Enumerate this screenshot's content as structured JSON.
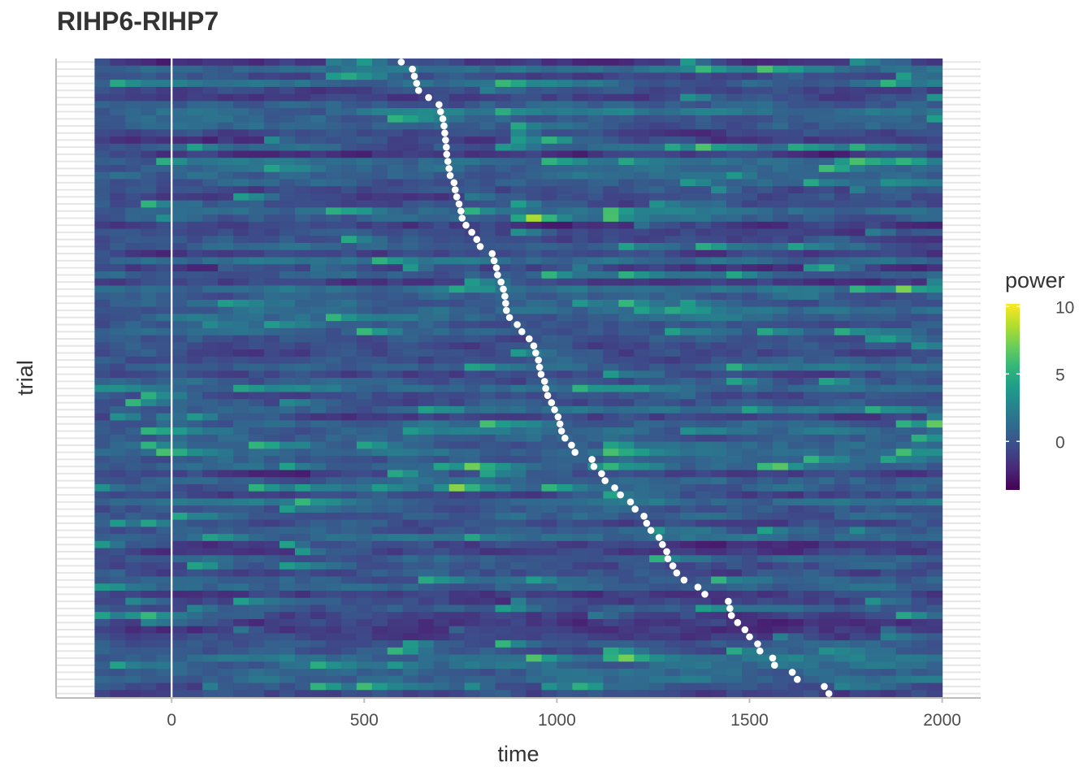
{
  "chart_data": {
    "type": "heatmap",
    "title": "RIHP6-RIHP7",
    "xlabel": "time",
    "ylabel": "trial",
    "xlim": [
      -300,
      2100
    ],
    "heatmap_x_range": [
      -200,
      2000
    ],
    "x_ticks": [
      0,
      500,
      1000,
      1500,
      2000
    ],
    "x_tick_labels": [
      "0",
      "500",
      "1000",
      "1500",
      "2000"
    ],
    "y_tick_labels": "none",
    "n_trials": 90,
    "vertical_reference_line": {
      "x": 0,
      "color": "#ffffff"
    },
    "trial_event_times": [
      596,
      625,
      630,
      636,
      641,
      667,
      694,
      698,
      704,
      707,
      709,
      711,
      713,
      714,
      717,
      720,
      723,
      733,
      736,
      740,
      746,
      751,
      754,
      764,
      779,
      792,
      801,
      832,
      837,
      843,
      846,
      855,
      861,
      865,
      867,
      869,
      877,
      897,
      909,
      928,
      940,
      945,
      952,
      955,
      959,
      968,
      971,
      976,
      986,
      994,
      1003,
      1008,
      1012,
      1021,
      1038,
      1047,
      1091,
      1096,
      1116,
      1125,
      1150,
      1165,
      1191,
      1203,
      1226,
      1233,
      1244,
      1265,
      1274,
      1285,
      1288,
      1301,
      1311,
      1330,
      1366,
      1384,
      1445,
      1449,
      1453,
      1469,
      1488,
      1500,
      1521,
      1527,
      1560,
      1565,
      1611,
      1624,
      1694,
      1706
    ],
    "event_marker_color": "#ffffff",
    "colorbar": {
      "title": "power",
      "range": [
        -3.6,
        10.2
      ],
      "ticks": [
        0,
        5,
        10
      ],
      "tick_labels": [
        "0",
        "5",
        "10"
      ],
      "colormap": "viridis"
    },
    "palette": [
      "#440154",
      "#482878",
      "#3e4989",
      "#31688e",
      "#26828e",
      "#1f9e89",
      "#35b779",
      "#6ece58",
      "#b5de2b",
      "#fde725"
    ],
    "grid": true,
    "legend_position": "right"
  }
}
